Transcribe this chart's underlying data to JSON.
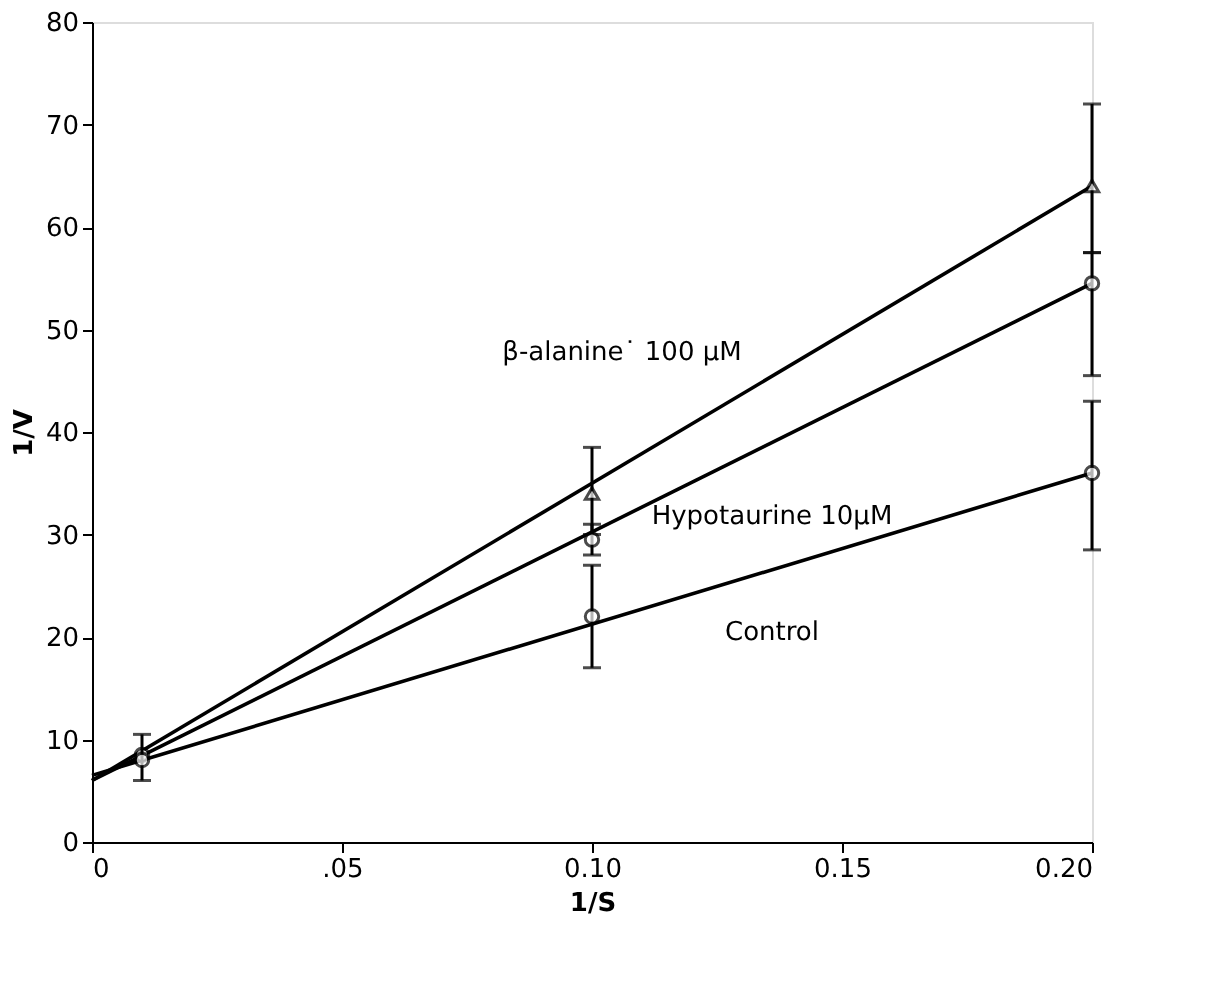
{
  "chart_data": {
    "type": "line",
    "xlabel": "1/S",
    "ylabel": "1/V",
    "xlim": [
      0,
      0.2
    ],
    "ylim": [
      0,
      80
    ],
    "xticks": [
      0,
      {
        "value": 0.05,
        "label": ".05"
      },
      {
        "value": 0.1,
        "label": "0.10"
      },
      {
        "value": 0.15,
        "label": "0.15"
      },
      {
        "value": 0.2,
        "label": "0.20"
      }
    ],
    "yticks": [
      0,
      10,
      20,
      30,
      40,
      50,
      60,
      70,
      80
    ],
    "grid": false,
    "line_style": "solid",
    "series": [
      {
        "name": "β-alanine˙ 100 μM",
        "color": "#000000",
        "x": [
          0,
          0.2
        ],
        "values": [
          6,
          64
        ],
        "marker": "none"
      },
      {
        "name": "Hypotaurine 10μM",
        "color": "#000000",
        "x": [
          0,
          0.2
        ],
        "values": [
          6,
          54.5
        ],
        "marker": "none"
      },
      {
        "name": "Control",
        "color": "#000000",
        "x": [
          0,
          0.2
        ],
        "values": [
          6.5,
          36
        ],
        "marker": "none"
      },
      {
        "type": "scatter",
        "color": "#000000",
        "x": [
          0.1,
          0.2
        ],
        "values": [
          34,
          64
        ],
        "marker": "triangle",
        "errors": [
          [
            30,
            38.5
          ],
          [
            57.5,
            72
          ]
        ]
      },
      {
        "type": "scatter",
        "color": "#000000",
        "x": [
          0.01,
          0.1,
          0.2
        ],
        "values": [
          8.5,
          29.5,
          54.5
        ],
        "marker": "circle",
        "errors": [
          null,
          [
            28,
            31
          ],
          [
            45.5,
            57.5
          ]
        ]
      },
      {
        "type": "scatter",
        "color": "#000000",
        "x": [
          0.01,
          0.1,
          0.2
        ],
        "values": [
          8,
          22,
          36
        ],
        "marker": "circle",
        "errors": [
          [
            6,
            10.5
          ],
          [
            17,
            27
          ],
          [
            28.5,
            43
          ]
        ]
      }
    ]
  }
}
